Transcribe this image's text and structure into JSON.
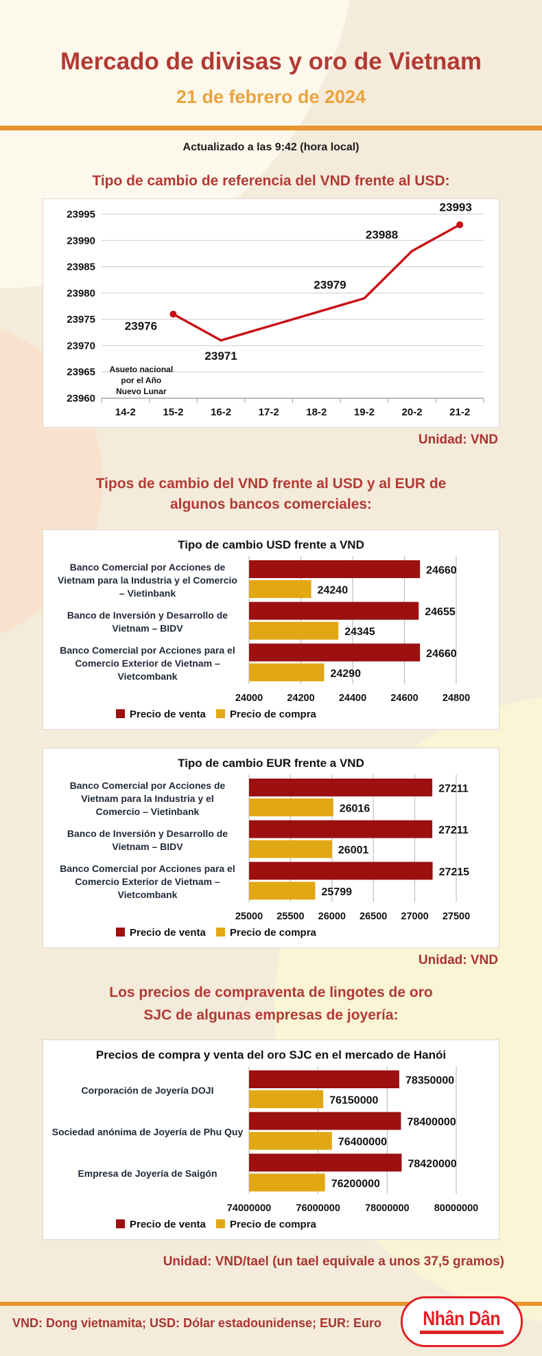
{
  "header": {
    "title": "Mercado de divisas y oro de Vietnam",
    "date": "21 de febrero de 2024",
    "updated": "Actualizado a las 9:42 (hora local)"
  },
  "colors": {
    "heading_red": "#b23a34",
    "subtitle_orange": "#e9a43e",
    "rule_orange": "#e6952e",
    "line_red": "#c81014",
    "bar_red": "#9c1010",
    "bar_gold": "#e2a714",
    "grid_gray": "#b3b3b3",
    "label_dark": "#1f2937",
    "logo_red": "#e32026"
  },
  "sections": {
    "reference_rate": {
      "title": "Tipo de cambio de referencia del VND frente al USD:",
      "unit": "Unidad: VND"
    },
    "bank_rates": {
      "title_lines": [
        "Tipos de cambio del VND frente al USD y al EUR de",
        "algunos bancos comerciales:"
      ],
      "unit": "Unidad: VND"
    },
    "gold": {
      "title_lines": [
        "Los precios de compraventa de lingotes de oro",
        "SJC de algunas empresas de joyería:"
      ],
      "unit": "Unidad: VND/tael (un tael equivale a unos 37,5 gramos)"
    }
  },
  "footer": {
    "abbreviations": "VND: Dong vietnamita; USD: Dólar estadounidense; EUR: Euro",
    "logo_text": "Nhân Dân"
  },
  "chart_data": [
    {
      "type": "line",
      "title": "Tipo de cambio de referencia del VND frente al USD",
      "categories": [
        "14-2",
        "15-2",
        "16-2",
        "17-2",
        "18-2",
        "19-2",
        "20-2",
        "21-2"
      ],
      "series": [
        {
          "name": "Tipo de cambio de referencia",
          "points": [
            null,
            23976,
            23971,
            null,
            null,
            23979,
            23988,
            23993
          ]
        }
      ],
      "ylim": [
        23960,
        23995
      ],
      "ystep": 5,
      "yticks": [
        23960,
        23965,
        23970,
        23975,
        23980,
        23985,
        23990,
        23995
      ],
      "grid": true,
      "annotation": {
        "lines": [
          "Asueto nacional",
          "por el Año",
          "Nuevo Lunar"
        ]
      },
      "unit": "Unidad: VND",
      "label_offsets": {
        "1": [
          -47,
          23
        ],
        "2": [
          0,
          28
        ],
        "5": [
          -50,
          -14
        ],
        "6": [
          -44,
          -18
        ],
        "7": [
          -6,
          -20
        ]
      }
    },
    {
      "type": "bar",
      "title": "Tipo de cambio USD frente a VND",
      "orientation": "horizontal",
      "categories": [
        {
          "lines": [
            "Banco Comercial por Acciones de",
            "Vietnam para la Industria y el Comercio",
            "– Vietinbank"
          ]
        },
        {
          "lines": [
            "Banco de Inversión y Desarrollo de",
            "Vietnam – BIDV"
          ]
        },
        {
          "lines": [
            "Banco Comercial por Acciones para el",
            "Comercio Exterior de Vietnam –",
            "Vietcombank"
          ]
        }
      ],
      "series": [
        {
          "name": "Precio de venta",
          "values": [
            24660,
            24655,
            24660
          ]
        },
        {
          "name": "Precio de compra",
          "values": [
            24240,
            24345,
            24290
          ]
        }
      ],
      "xlim": [
        24000,
        24800
      ],
      "xstep": 200,
      "xticks": [
        24000,
        24200,
        24400,
        24600,
        24800
      ],
      "legend": [
        "Precio de venta",
        "Precio de compra"
      ],
      "legend_position": "bottom-left"
    },
    {
      "type": "bar",
      "title": "Tipo de cambio EUR frente a VND",
      "orientation": "horizontal",
      "categories": [
        {
          "lines": [
            "Banco Comercial por Acciones de",
            "Vietnam para la Industria y el",
            "Comercio – Vietinbank"
          ]
        },
        {
          "lines": [
            "Banco de Inversión y Desarrollo de",
            "Vietnam – BIDV"
          ]
        },
        {
          "lines": [
            "Banco Comercial por Acciones para el",
            "Comercio Exterior de Vietnam –",
            "Vietcombank"
          ]
        }
      ],
      "series": [
        {
          "name": "Precio de venta",
          "values": [
            27211,
            27211,
            27215
          ]
        },
        {
          "name": "Precio de compra",
          "values": [
            26016,
            26001,
            25799
          ]
        }
      ],
      "xlim": [
        25000,
        27500
      ],
      "xstep": 500,
      "xticks": [
        25000,
        25500,
        26000,
        26500,
        27000,
        27500
      ],
      "legend": [
        "Precio de venta",
        "Precio de compra"
      ],
      "legend_position": "bottom-left"
    },
    {
      "type": "bar",
      "title": "Precios de compra y venta del oro SJC en el mercado de Hanói",
      "orientation": "horizontal",
      "categories": [
        {
          "lines": [
            "Corporación de Joyería DOJI"
          ]
        },
        {
          "lines": [
            "Sociedad anónima de Joyería de Phu Quy"
          ]
        },
        {
          "lines": [
            "Empresa de Joyería de Saigón"
          ]
        }
      ],
      "series": [
        {
          "name": "Precio de venta",
          "values": [
            78350000,
            78400000,
            78420000
          ]
        },
        {
          "name": "Precio de compra",
          "values": [
            76150000,
            76400000,
            76200000
          ]
        }
      ],
      "xlim": [
        74000000,
        80000000
      ],
      "xstep": 2000000,
      "xticks": [
        74000000,
        76000000,
        78000000,
        80000000
      ],
      "legend": [
        "Precio de venta",
        "Precio de compra"
      ],
      "legend_position": "bottom-left"
    }
  ]
}
